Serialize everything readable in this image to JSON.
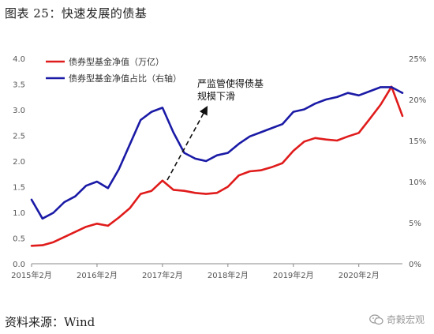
{
  "figure_title": "图表 25：快速发展的债基",
  "source": "资料来源：Wind",
  "watermark": "奇榖宏观",
  "watermark_icon": "wechat-icon",
  "chart_data": {
    "type": "line",
    "title": "",
    "x_tick_labels": [
      "2015年2月",
      "2016年2月",
      "2017年2月",
      "2018年2月",
      "2019年2月",
      "2020年2月"
    ],
    "x_range": [
      "2015-02",
      "2020-10"
    ],
    "y_left": {
      "ticks": [
        "0.0",
        "0.5",
        "1.0",
        "1.5",
        "2.0",
        "2.5",
        "3.0",
        "3.5",
        "4.0"
      ],
      "range": [
        0,
        4
      ]
    },
    "y_right": {
      "ticks": [
        "0%",
        "5%",
        "10%",
        "15%",
        "20%",
        "25%"
      ],
      "range": [
        0,
        25
      ]
    },
    "grid": false,
    "legend_position": "top-left",
    "series": [
      {
        "name": "债券型基金净值（万亿）",
        "axis": "left",
        "color": "#e01b1b",
        "x": [
          "2015-02",
          "2015-04",
          "2015-06",
          "2015-08",
          "2015-10",
          "2015-12",
          "2016-02",
          "2016-04",
          "2016-06",
          "2016-08",
          "2016-10",
          "2016-12",
          "2017-02",
          "2017-04",
          "2017-06",
          "2017-08",
          "2017-10",
          "2017-12",
          "2018-02",
          "2018-04",
          "2018-06",
          "2018-08",
          "2018-10",
          "2018-12",
          "2019-02",
          "2019-04",
          "2019-06",
          "2019-08",
          "2019-10",
          "2019-12",
          "2020-02",
          "2020-04",
          "2020-06",
          "2020-08",
          "2020-10"
        ],
        "values": [
          0.35,
          0.36,
          0.42,
          0.52,
          0.62,
          0.72,
          0.78,
          0.74,
          0.9,
          1.08,
          1.36,
          1.42,
          1.62,
          1.44,
          1.42,
          1.38,
          1.36,
          1.38,
          1.5,
          1.72,
          1.8,
          1.82,
          1.88,
          1.96,
          2.2,
          2.38,
          2.45,
          2.42,
          2.4,
          2.48,
          2.55,
          2.82,
          3.1,
          3.45,
          2.88
        ]
      },
      {
        "name": "债券型基金净值占比（右轴）",
        "axis": "right",
        "color": "#1a1aa6",
        "x": [
          "2015-02",
          "2015-04",
          "2015-06",
          "2015-08",
          "2015-10",
          "2015-12",
          "2016-02",
          "2016-04",
          "2016-06",
          "2016-08",
          "2016-10",
          "2016-12",
          "2017-02",
          "2017-04",
          "2017-06",
          "2017-08",
          "2017-10",
          "2017-12",
          "2018-02",
          "2018-04",
          "2018-06",
          "2018-08",
          "2018-10",
          "2018-12",
          "2019-02",
          "2019-04",
          "2019-06",
          "2019-08",
          "2019-10",
          "2019-12",
          "2020-02",
          "2020-04",
          "2020-06",
          "2020-08",
          "2020-10"
        ],
        "values": [
          7.8,
          5.5,
          6.2,
          7.5,
          8.2,
          9.5,
          10.0,
          9.2,
          11.5,
          14.5,
          17.5,
          18.5,
          19.0,
          16.0,
          13.5,
          12.8,
          12.5,
          13.2,
          13.5,
          14.6,
          15.5,
          16.0,
          16.5,
          17.0,
          18.5,
          18.8,
          19.5,
          20.0,
          20.3,
          20.8,
          20.5,
          21.0,
          21.5,
          21.5,
          20.8
        ]
      }
    ],
    "annotations": [
      {
        "lines": [
          "严监管使得债基",
          "规模下滑"
        ],
        "arrow_style": "dashed"
      }
    ]
  }
}
